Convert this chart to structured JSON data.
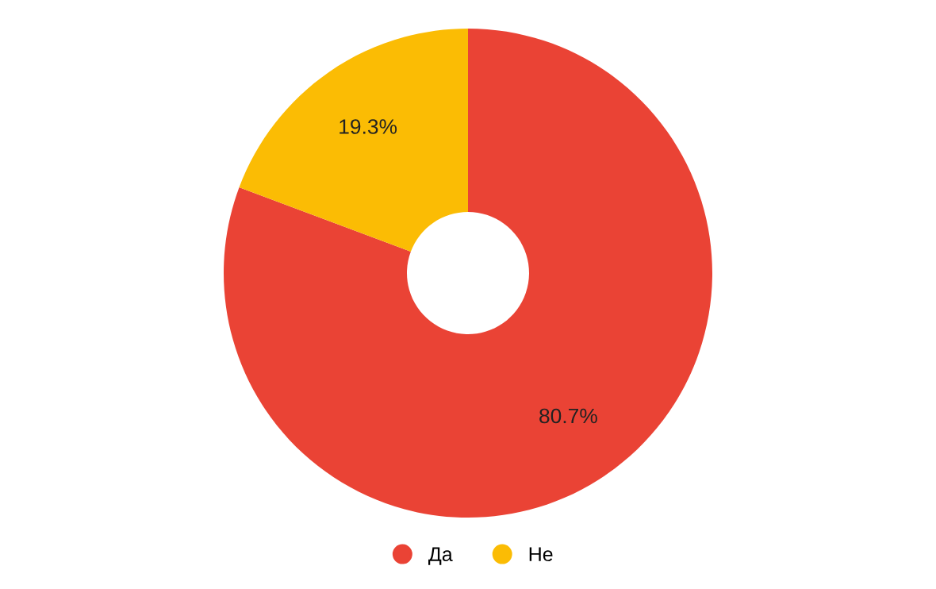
{
  "chart_data": {
    "type": "donut",
    "categories": [
      "Да",
      "Не"
    ],
    "values": [
      80.7,
      19.3
    ],
    "colors": [
      "#ea4335",
      "#fbbc04"
    ],
    "value_labels": [
      "80.7%",
      "19.3%"
    ],
    "legend": "bottom"
  }
}
